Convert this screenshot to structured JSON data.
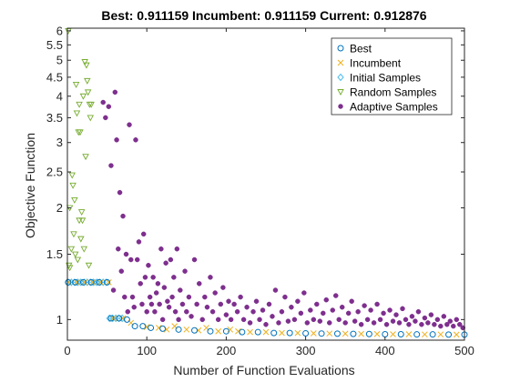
{
  "chart_data": {
    "type": "scatter",
    "title": "Best: 0.911159 Incumbent: 0.911159 Current: 0.912876",
    "xlabel": "Number of Function Evaluations",
    "ylabel": "Objective Function",
    "xlim": [
      0,
      500
    ],
    "ylim": [
      0.88,
      6.1
    ],
    "yscale": "log",
    "xticks": [
      0,
      100,
      200,
      300,
      400,
      500
    ],
    "xtick_labels": [
      "0",
      "100",
      "200",
      "300",
      "400",
      "500"
    ],
    "yticks": [
      1,
      1.5,
      2,
      2.5,
      3,
      3.5,
      4,
      4.5,
      5,
      5.5,
      6
    ],
    "ytick_labels": [
      "1",
      "1.5",
      "2",
      "2.5",
      "3",
      "3.5",
      "4",
      "4.5",
      "5",
      "5.5",
      "6"
    ],
    "grid": false,
    "legend_position": "top-right",
    "colors": {
      "best": "#0072BD",
      "incumbent": "#EDB120",
      "initial": "#4DBEEE",
      "random": "#77AC30",
      "adaptive": "#7E2F8E"
    },
    "series": [
      {
        "name": "Best",
        "marker": "circle",
        "points": [
          [
            1,
            1.26
          ],
          [
            10,
            1.26
          ],
          [
            20,
            1.26
          ],
          [
            30,
            1.26
          ],
          [
            40,
            1.26
          ],
          [
            50,
            1.26
          ],
          [
            55,
            1.008
          ],
          [
            65,
            1.008
          ],
          [
            75,
            1.0
          ],
          [
            85,
            0.96
          ],
          [
            95,
            0.96
          ],
          [
            105,
            0.95
          ],
          [
            120,
            0.945
          ],
          [
            140,
            0.94
          ],
          [
            160,
            0.935
          ],
          [
            180,
            0.93
          ],
          [
            200,
            0.93
          ],
          [
            220,
            0.925
          ],
          [
            240,
            0.925
          ],
          [
            260,
            0.92
          ],
          [
            280,
            0.92
          ],
          [
            300,
            0.918
          ],
          [
            320,
            0.917
          ],
          [
            340,
            0.916
          ],
          [
            360,
            0.915
          ],
          [
            380,
            0.914
          ],
          [
            400,
            0.913
          ],
          [
            420,
            0.913
          ],
          [
            440,
            0.912
          ],
          [
            460,
            0.912
          ],
          [
            480,
            0.911
          ],
          [
            500,
            0.911
          ]
        ]
      },
      {
        "name": "Incumbent",
        "marker": "x",
        "points": [
          [
            2,
            1.26
          ],
          [
            12,
            1.26
          ],
          [
            22,
            1.26
          ],
          [
            32,
            1.26
          ],
          [
            42,
            1.26
          ],
          [
            52,
            1.26
          ],
          [
            58,
            1.008
          ],
          [
            70,
            1.008
          ],
          [
            80,
            0.98
          ],
          [
            100,
            0.955
          ],
          [
            115,
            0.95
          ],
          [
            125,
            0.94
          ],
          [
            135,
            0.96
          ],
          [
            150,
            0.94
          ],
          [
            165,
            0.935
          ],
          [
            175,
            0.95
          ],
          [
            190,
            0.93
          ],
          [
            205,
            0.94
          ],
          [
            215,
            0.93
          ],
          [
            230,
            0.925
          ],
          [
            250,
            0.925
          ],
          [
            270,
            0.92
          ],
          [
            290,
            0.92
          ],
          [
            310,
            0.918
          ],
          [
            330,
            0.917
          ],
          [
            350,
            0.916
          ],
          [
            370,
            0.915
          ],
          [
            390,
            0.914
          ],
          [
            410,
            0.913
          ],
          [
            430,
            0.913
          ],
          [
            450,
            0.912
          ],
          [
            470,
            0.912
          ],
          [
            490,
            0.911
          ]
        ]
      },
      {
        "name": "Initial Samples",
        "marker": "diamond",
        "points": [
          [
            1,
            1.26
          ],
          [
            5,
            1.26
          ],
          [
            9,
            1.26
          ],
          [
            13,
            1.26
          ],
          [
            17,
            1.26
          ],
          [
            21,
            1.26
          ],
          [
            25,
            1.26
          ],
          [
            29,
            1.26
          ],
          [
            33,
            1.26
          ],
          [
            37,
            1.26
          ],
          [
            41,
            1.26
          ],
          [
            45,
            1.26
          ],
          [
            49,
            1.26
          ],
          [
            53,
            1.008
          ],
          [
            57,
            1.008
          ],
          [
            61,
            1.008
          ],
          [
            65,
            1.008
          ],
          [
            69,
            1.008
          ]
        ]
      },
      {
        "name": "Random Samples",
        "marker": "triangle-down",
        "points": [
          [
            1,
            6.0
          ],
          [
            2,
            1.4
          ],
          [
            3,
            1.38
          ],
          [
            3,
            2.0
          ],
          [
            5,
            1.55
          ],
          [
            6,
            2.45
          ],
          [
            7,
            2.3
          ],
          [
            8,
            1.7
          ],
          [
            9,
            2.1
          ],
          [
            10,
            1.5
          ],
          [
            11,
            4.3
          ],
          [
            12,
            3.6
          ],
          [
            13,
            1.45
          ],
          [
            14,
            3.2
          ],
          [
            15,
            1.85
          ],
          [
            15,
            3.8
          ],
          [
            16,
            3.2
          ],
          [
            17,
            1.65
          ],
          [
            18,
            1.95
          ],
          [
            19,
            1.85
          ],
          [
            20,
            4.0
          ],
          [
            21,
            1.55
          ],
          [
            22,
            4.95
          ],
          [
            23,
            2.75
          ],
          [
            24,
            4.85
          ],
          [
            25,
            4.4
          ],
          [
            26,
            4.1
          ],
          [
            27,
            1.4
          ],
          [
            28,
            3.8
          ],
          [
            29,
            3.5
          ],
          [
            30,
            3.8
          ]
        ]
      },
      {
        "name": "Adaptive Samples",
        "marker": "circle-filled",
        "points": [
          [
            45,
            3.85
          ],
          [
            48,
            3.5
          ],
          [
            52,
            3.75
          ],
          [
            55,
            2.6
          ],
          [
            58,
            1.2
          ],
          [
            60,
            4.1
          ],
          [
            62,
            3.05
          ],
          [
            64,
            1.55
          ],
          [
            66,
            2.2
          ],
          [
            68,
            1.35
          ],
          [
            70,
            1.9
          ],
          [
            72,
            1.15
          ],
          [
            74,
            1.5
          ],
          [
            76,
            1.05
          ],
          [
            78,
            3.35
          ],
          [
            80,
            1.45
          ],
          [
            82,
            1.15
          ],
          [
            84,
            1.08
          ],
          [
            86,
            3.05
          ],
          [
            88,
            1.45
          ],
          [
            90,
            1.62
          ],
          [
            92,
            1.25
          ],
          [
            94,
            1.1
          ],
          [
            96,
            1.7
          ],
          [
            98,
            1.3
          ],
          [
            100,
            1.05
          ],
          [
            102,
            1.4
          ],
          [
            104,
            1.15
          ],
          [
            106,
            1.1
          ],
          [
            108,
            1.3
          ],
          [
            110,
            1.05
          ],
          [
            112,
            1.18
          ],
          [
            114,
            1.25
          ],
          [
            116,
            1.1
          ],
          [
            118,
            1.55
          ],
          [
            120,
            1.0
          ],
          [
            122,
            1.22
          ],
          [
            124,
            1.42
          ],
          [
            126,
            1.12
          ],
          [
            128,
            1.08
          ],
          [
            130,
            1.45
          ],
          [
            132,
            1.15
          ],
          [
            134,
            1.3
          ],
          [
            136,
            1.05
          ],
          [
            138,
            1.55
          ],
          [
            140,
            1.0
          ],
          [
            142,
            1.2
          ],
          [
            145,
            1.1
          ],
          [
            148,
            1.35
          ],
          [
            150,
            1.05
          ],
          [
            153,
            1.15
          ],
          [
            156,
            1.02
          ],
          [
            160,
            1.45
          ],
          [
            163,
            1.1
          ],
          [
            166,
            1.25
          ],
          [
            170,
            1.0
          ],
          [
            173,
            1.15
          ],
          [
            176,
            1.08
          ],
          [
            180,
            1.3
          ],
          [
            183,
            1.05
          ],
          [
            186,
            1.18
          ],
          [
            190,
            1.0
          ],
          [
            193,
            1.1
          ],
          [
            196,
            1.22
          ],
          [
            200,
            1.03
          ],
          [
            203,
            1.12
          ],
          [
            206,
            1.0
          ],
          [
            210,
            1.1
          ],
          [
            214,
            1.05
          ],
          [
            218,
            1.15
          ],
          [
            222,
            1.0
          ],
          [
            226,
            1.08
          ],
          [
            230,
            0.98
          ],
          [
            234,
            1.05
          ],
          [
            238,
            1.12
          ],
          [
            242,
            1.0
          ],
          [
            246,
            1.06
          ],
          [
            250,
            0.97
          ],
          [
            254,
            1.1
          ],
          [
            258,
            1.02
          ],
          [
            262,
            1.2
          ],
          [
            266,
            0.98
          ],
          [
            270,
            1.05
          ],
          [
            274,
            1.15
          ],
          [
            278,
            0.99
          ],
          [
            282,
            1.08
          ],
          [
            286,
            1.0
          ],
          [
            290,
            1.12
          ],
          [
            294,
            1.04
          ],
          [
            298,
            1.18
          ],
          [
            302,
            0.98
          ],
          [
            306,
            1.06
          ],
          [
            310,
            1.0
          ],
          [
            314,
            1.1
          ],
          [
            318,
            0.99
          ],
          [
            322,
            1.04
          ],
          [
            326,
            1.13
          ],
          [
            330,
            0.98
          ],
          [
            334,
            1.06
          ],
          [
            338,
            1.16
          ],
          [
            342,
            1.0
          ],
          [
            346,
            1.08
          ],
          [
            350,
            0.98
          ],
          [
            354,
            1.04
          ],
          [
            358,
            1.12
          ],
          [
            362,
            0.99
          ],
          [
            366,
            1.05
          ],
          [
            370,
            0.97
          ],
          [
            374,
            1.09
          ],
          [
            378,
            1.0
          ],
          [
            382,
            1.06
          ],
          [
            386,
            0.98
          ],
          [
            390,
            1.1
          ],
          [
            394,
            1.0
          ],
          [
            398,
            1.04
          ],
          [
            402,
            0.97
          ],
          [
            406,
            1.06
          ],
          [
            410,
            0.99
          ],
          [
            414,
            1.03
          ],
          [
            418,
            0.98
          ],
          [
            422,
            1.07
          ],
          [
            426,
            1.0
          ],
          [
            430,
            0.97
          ],
          [
            434,
            1.02
          ],
          [
            438,
            0.99
          ],
          [
            442,
            1.05
          ],
          [
            446,
            0.97
          ],
          [
            450,
            1.01
          ],
          [
            454,
            0.98
          ],
          [
            458,
            1.03
          ],
          [
            462,
            0.97
          ],
          [
            466,
            1.0
          ],
          [
            470,
            0.96
          ],
          [
            474,
            1.02
          ],
          [
            478,
            0.97
          ],
          [
            482,
            0.99
          ],
          [
            486,
            0.96
          ],
          [
            490,
            1.0
          ],
          [
            494,
            0.97
          ],
          [
            498,
            0.95
          ]
        ]
      }
    ]
  }
}
